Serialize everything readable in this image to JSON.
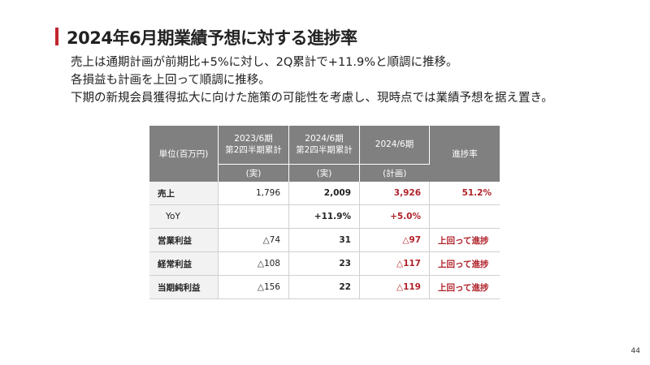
{
  "slide": {
    "title": "2024年6月期業績予想に対する進捗率",
    "bullets": [
      "売上は通期計画が前期比+5%に対し、2Q累計で+11.9%と順調に推移。",
      "各損益も計画を上回って順調に推移。",
      "下期の新規会員獲得拡大に向けた施策の可能性を考慮し、現時点では業績予想を据え置き。"
    ],
    "page_number": "44"
  },
  "table": {
    "unit_label": "単位(百万円)",
    "col1": {
      "line1": "2023/6期",
      "line2": "第2四半期累計",
      "sub": "(実)"
    },
    "col2": {
      "line1": "2024/6期",
      "line2": "第2四半期累計",
      "sub": "(実)"
    },
    "col3": {
      "line1": "2024/6期",
      "sub": "(計画)"
    },
    "col4": {
      "label": "進捗率"
    },
    "rows": [
      {
        "label": "売上",
        "prev": "1,796",
        "actual": "2,009",
        "plan": "3,926",
        "rate": "51.2%"
      },
      {
        "label": "YoY",
        "prev": "",
        "actual": "+11.9%",
        "plan": "+5.0%",
        "rate": ""
      },
      {
        "label": "営業利益",
        "prev": "△74",
        "actual": "31",
        "plan": "△97",
        "rate": "上回って進捗"
      },
      {
        "label": "経常利益",
        "prev": "△108",
        "actual": "23",
        "plan": "△117",
        "rate": "上回って進捗"
      },
      {
        "label": "当期純利益",
        "prev": "△156",
        "actual": "22",
        "plan": "△119",
        "rate": "上回って進捗"
      }
    ]
  },
  "colors": {
    "accent": "#c0262d",
    "header_bg": "#808080",
    "label_bg": "#f2f2f2"
  }
}
